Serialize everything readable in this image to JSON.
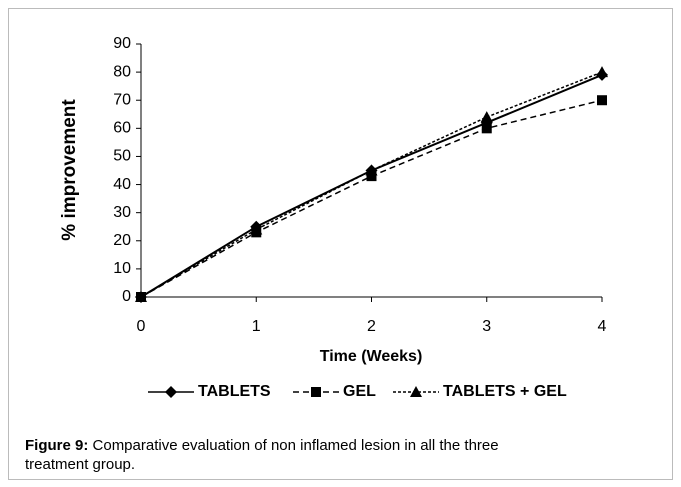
{
  "chart_data": {
    "type": "line",
    "x_label": "Time (Weeks)",
    "y_label": "% improvement",
    "x": [
      0,
      1,
      2,
      3,
      4
    ],
    "xlim": [
      0,
      4
    ],
    "xticks": [
      0,
      1,
      2,
      3,
      4
    ],
    "ylim": [
      0,
      90
    ],
    "yticks": [
      0,
      10,
      20,
      30,
      40,
      50,
      60,
      70,
      80,
      90
    ],
    "series": [
      {
        "name": "TABLETS",
        "color": "#000000",
        "values": [
          0,
          25,
          45,
          62,
          79
        ]
      },
      {
        "name": "GEL",
        "color": "#000000",
        "values": [
          0,
          23,
          43,
          60,
          70
        ]
      },
      {
        "name": "TABLETS + GEL",
        "color": "#000000",
        "values": [
          0,
          24,
          45,
          64,
          80
        ]
      }
    ],
    "legend": "bottom",
    "caption_label": "Figure 9:",
    "caption": "Comparative evaluation of non inflamed lesion in all the three treatment group."
  }
}
